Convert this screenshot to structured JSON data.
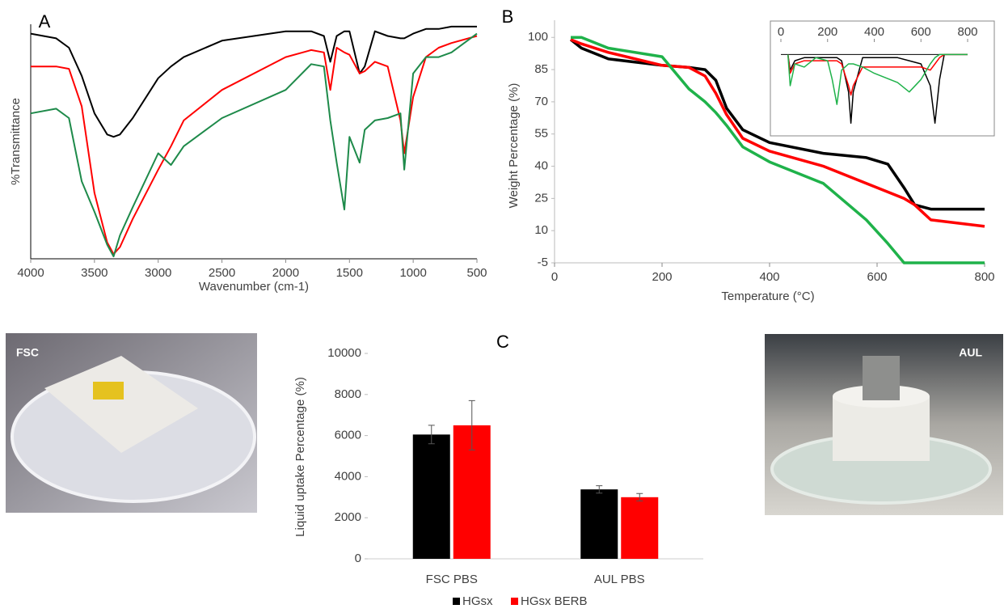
{
  "chart_data": [
    {
      "type": "line",
      "panel": "A",
      "ylabel": "%Transmittance",
      "xlabel": "Wavenumber (cm-1)",
      "x": [
        4000,
        3800,
        3700,
        3600,
        3500,
        3400,
        3350,
        3300,
        3200,
        3000,
        2900,
        2800,
        2500,
        2000,
        1800,
        1700,
        1650,
        1600,
        1540,
        1500,
        1420,
        1380,
        1300,
        1200,
        1100,
        1070,
        1000,
        900,
        800,
        700,
        500
      ],
      "xlim": [
        4000,
        500
      ],
      "xticks": [
        4000,
        3500,
        3000,
        2500,
        2000,
        1500,
        1000,
        500
      ],
      "ylim": [
        0,
        100
      ],
      "series": [
        {
          "color": "#000000",
          "values": [
            96,
            94,
            90,
            78,
            62,
            53,
            52,
            53,
            60,
            77,
            82,
            86,
            93,
            97,
            97,
            95,
            84,
            95,
            97,
            97,
            79,
            82,
            97,
            95,
            94,
            94,
            96,
            98,
            98,
            99,
            99
          ]
        },
        {
          "color": "#ff0000",
          "values": [
            82,
            82,
            81,
            65,
            28,
            7,
            2,
            5,
            17,
            38,
            48,
            59,
            72,
            86,
            89,
            88,
            72,
            90,
            88,
            87,
            79,
            80,
            84,
            82,
            59,
            45,
            69,
            86,
            90,
            92,
            95
          ]
        },
        {
          "color": "#1e8a4a",
          "values": [
            62,
            64,
            60,
            33,
            20,
            6,
            1,
            10,
            22,
            45,
            40,
            48,
            60,
            72,
            83,
            82,
            59,
            41,
            21,
            52,
            41,
            55,
            59,
            60,
            62,
            38,
            79,
            86,
            86,
            88,
            96
          ]
        }
      ]
    },
    {
      "type": "line",
      "panel": "B",
      "ylabel": "Weight Percentage (%)",
      "xlabel": "Temperature (°C)",
      "x": [
        30,
        50,
        100,
        200,
        250,
        280,
        300,
        320,
        350,
        400,
        500,
        580,
        620,
        650,
        670,
        700,
        800
      ],
      "xlim": [
        0,
        800
      ],
      "xticks": [
        0,
        200,
        400,
        600,
        800
      ],
      "ylim": [
        -5,
        108
      ],
      "yticks": [
        -5,
        10,
        25,
        40,
        55,
        70,
        85,
        100
      ],
      "series": [
        {
          "color": "#000000",
          "values": [
            99,
            95,
            90,
            87,
            86,
            85,
            80,
            67,
            57,
            51,
            46,
            44,
            41,
            30,
            22,
            20,
            20
          ]
        },
        {
          "color": "#ff0000",
          "values": [
            99,
            97,
            93,
            87,
            86,
            82,
            74,
            64,
            53,
            47,
            40,
            32,
            28,
            25,
            22,
            15,
            12
          ]
        },
        {
          "color": "#1fb24a",
          "values": [
            100,
            100,
            95,
            91,
            76,
            70,
            65,
            59,
            49,
            42,
            32,
            15,
            4,
            -5,
            -5,
            -5,
            -5
          ]
        }
      ]
    },
    {
      "type": "line",
      "x": [
        30,
        40,
        60,
        100,
        150,
        200,
        220,
        240,
        260,
        290,
        300,
        310,
        350,
        400,
        500,
        550,
        600,
        640,
        660,
        680,
        700,
        750,
        800
      ],
      "xlim": [
        0,
        800
      ],
      "xticks": [
        0,
        200,
        400,
        600,
        800
      ],
      "ylim": [
        -24,
        4
      ],
      "series": [
        {
          "color": "#000000",
          "values": [
            0,
            -5,
            -2,
            -1,
            -1,
            -1,
            -1,
            -1,
            -2,
            -12,
            -22,
            -12,
            -1,
            -1,
            -1,
            -2,
            -3,
            -10,
            -22,
            -8,
            0,
            0,
            0
          ]
        },
        {
          "color": "#ff0000",
          "values": [
            0,
            -6,
            -3,
            -2,
            -2,
            -2,
            -2,
            -2,
            -3,
            -10,
            -13,
            -10,
            -4,
            -4,
            -4,
            -4,
            -4,
            -5,
            -3,
            -1,
            0,
            0,
            0
          ]
        },
        {
          "color": "#1fb24a",
          "values": [
            0,
            -10,
            -3,
            -4,
            -1,
            -2,
            -8,
            -16,
            -5,
            -3,
            -3,
            -3,
            -4,
            -6,
            -9,
            -12,
            -8,
            -3,
            -1,
            0,
            0,
            0,
            0
          ]
        }
      ]
    },
    {
      "type": "bar",
      "panel": "C",
      "ylabel": "Liquid uptake Percentage (%)",
      "categories": [
        "FSC PBS",
        "AUL PBS"
      ],
      "ylim": [
        0,
        10000
      ],
      "yticks": [
        0,
        2000,
        4000,
        6000,
        8000,
        10000
      ],
      "series": [
        {
          "name": "HGsx",
          "color": "#000000",
          "values": [
            6050,
            3380
          ],
          "errors": [
            450,
            180
          ]
        },
        {
          "name": "HGsx BERB",
          "color": "#ff0000",
          "values": [
            6500,
            3000
          ],
          "errors": [
            1200,
            180
          ]
        }
      ]
    }
  ],
  "photos": [
    {
      "label": "FSC"
    },
    {
      "label": "AUL"
    }
  ]
}
